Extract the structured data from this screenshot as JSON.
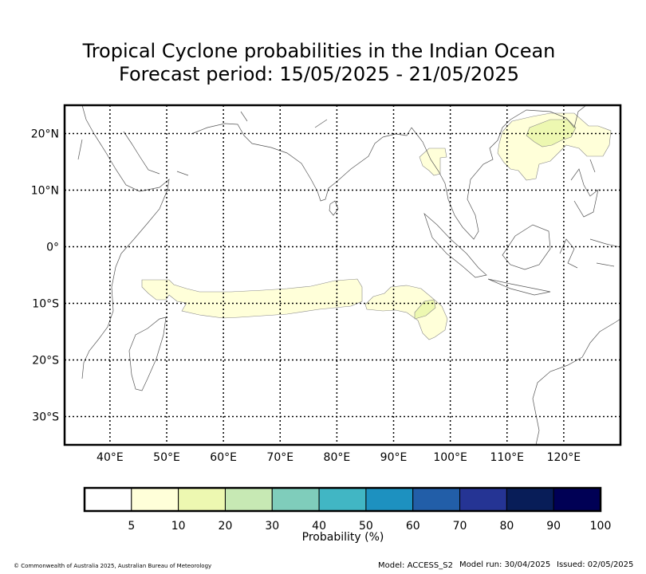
{
  "title": {
    "line1": "Tropical Cyclone probabilities in the Indian Ocean",
    "line2": "Forecast period: 15/05/2025 - 21/05/2025"
  },
  "map": {
    "lon_ticks": [
      "40°E",
      "50°E",
      "60°E",
      "70°E",
      "80°E",
      "90°E",
      "100°E",
      "110°E",
      "120°E"
    ],
    "lat_ticks": [
      "20°N",
      "10°N",
      "0°",
      "10°S",
      "20°S",
      "30°S"
    ],
    "lon_range": [
      32,
      130
    ],
    "lat_range": [
      -35,
      25
    ],
    "gridlines": true
  },
  "probability_areas": [
    {
      "name": "South Indian Ocean band west",
      "probability_range": "5-10"
    },
    {
      "name": "South Indian Ocean band east",
      "probability_range": "5-10"
    },
    {
      "name": "South Indian Ocean core",
      "probability_range": "10-20"
    },
    {
      "name": "Bay of Bengal",
      "probability_range": "5-10"
    },
    {
      "name": "South China Sea region",
      "probability_range": "5-10"
    },
    {
      "name": "South China Sea core",
      "probability_range": "10-20"
    }
  ],
  "colorbar": {
    "label": "Probability (%)",
    "ticks": [
      "5",
      "10",
      "20",
      "30",
      "40",
      "50",
      "60",
      "70",
      "80",
      "90",
      "100"
    ],
    "colors": [
      "#ffffff",
      "#ffffd9",
      "#edf8b1",
      "#c7e9b4",
      "#7fcdbb",
      "#41b6c4",
      "#1d91c0",
      "#225ea8",
      "#253494",
      "#081d58",
      "#000055"
    ]
  },
  "footer": {
    "copyright": "© Commonwealth of Australia 2025, Australian Bureau of Meteorology",
    "model": "Model: ACCESS_S2",
    "model_run": "Model run: 30/04/2025",
    "issued": "Issued: 02/05/2025"
  }
}
